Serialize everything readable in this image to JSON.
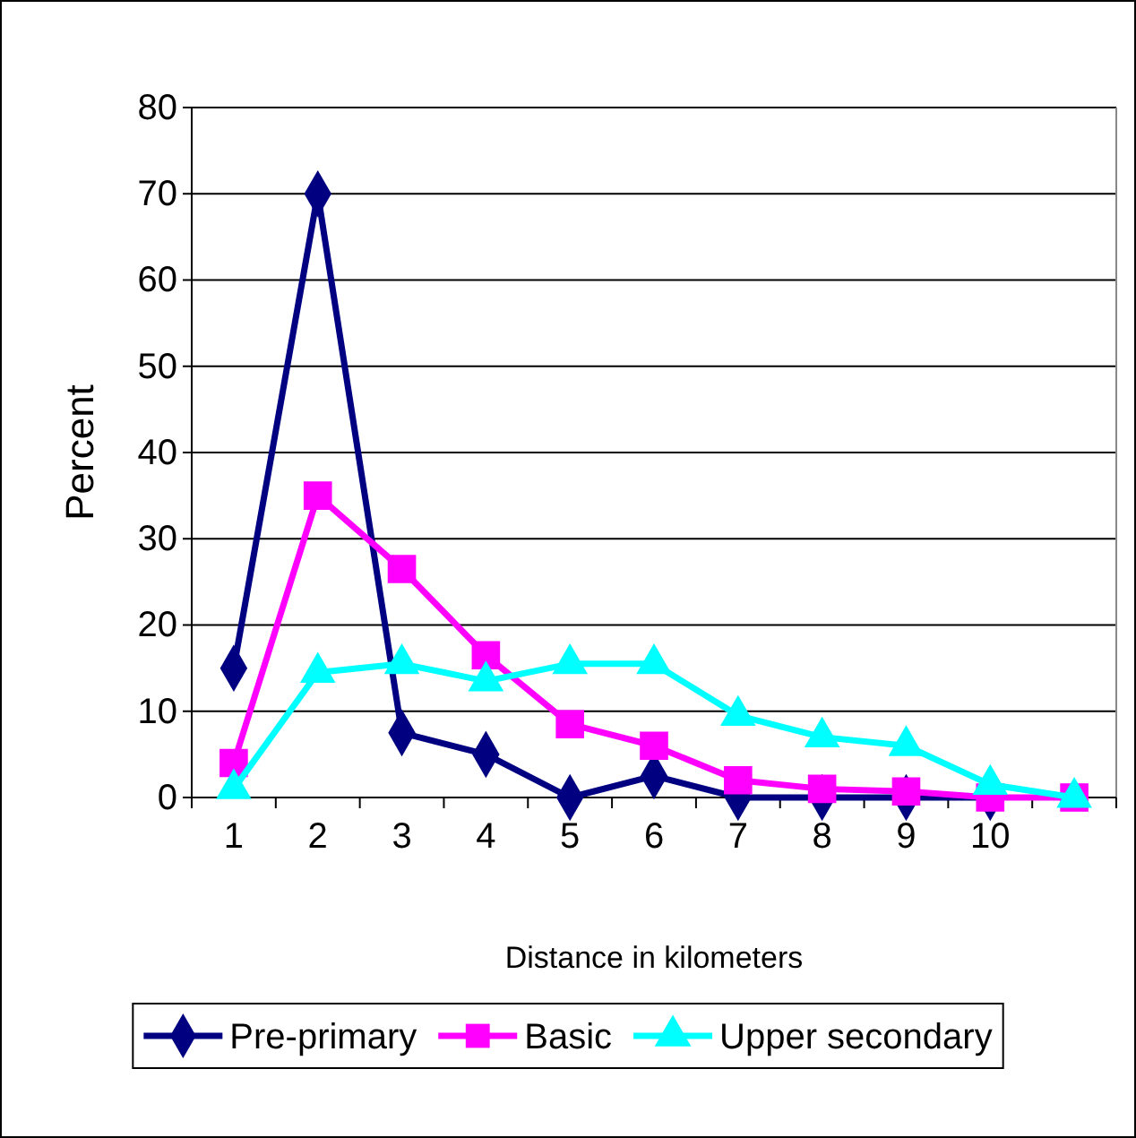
{
  "chart_data": {
    "type": "line",
    "xlabel": "Distance in kilometers",
    "ylabel": "Percent",
    "categories": [
      "1",
      "2",
      "3",
      "4",
      "5",
      "6",
      "7",
      "8",
      "9",
      "10",
      null
    ],
    "series": [
      {
        "name": "Pre-primary",
        "color": "#000080",
        "marker": "diamond",
        "values": [
          15,
          70,
          7.5,
          5,
          0,
          2.5,
          0,
          0,
          0,
          0,
          null
        ]
      },
      {
        "name": "Basic",
        "color": "#ff00ff",
        "marker": "square",
        "values": [
          4,
          35,
          26.5,
          16.5,
          8.5,
          6,
          2,
          1,
          0.7,
          0,
          0
        ]
      },
      {
        "name": "Upper secondary",
        "color": "#00ffff",
        "marker": "triangle",
        "values": [
          1,
          14.5,
          15.5,
          13.5,
          15.5,
          15.5,
          9.5,
          7,
          6,
          1.5,
          0
        ]
      }
    ],
    "ylim": [
      0,
      80
    ],
    "yticks": [
      0,
      10,
      20,
      30,
      40,
      50,
      60,
      70,
      80
    ],
    "grid": "y",
    "legend": "bottom"
  }
}
